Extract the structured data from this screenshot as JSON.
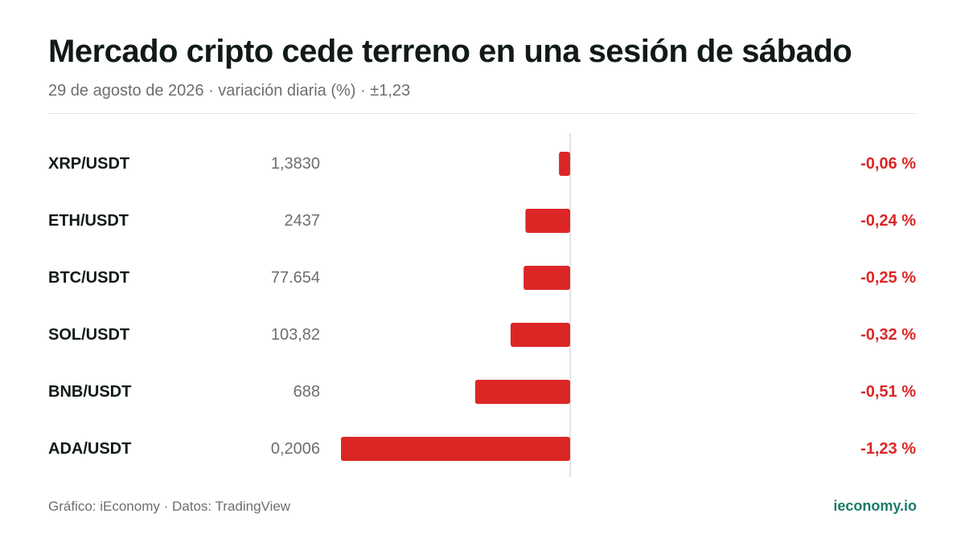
{
  "title": "Mercado cripto cede terreno en una sesión de sábado",
  "subtitle": "29 de agosto de 2026 · variación diaria (%) · ±1,23",
  "footer": {
    "source": "Gráfico: iEconomy · Datos: TradingView",
    "brand": "ieconomy.io"
  },
  "colors": {
    "negative": "#dc2626",
    "pair_label": "#111a17",
    "price_label": "#6b6f6d",
    "brand": "#1a7a6a",
    "axis": "#d9dbda"
  },
  "chart_data": {
    "type": "bar",
    "orientation": "horizontal",
    "unit": "%",
    "xlim": [
      -1.23,
      1.23
    ],
    "categories": [
      "XRP/USDT",
      "ETH/USDT",
      "BTC/USDT",
      "SOL/USDT",
      "BNB/USDT",
      "ADA/USDT"
    ],
    "prices": [
      "1,3830",
      "2437",
      "77.654",
      "103,82",
      "688",
      "0,2006"
    ],
    "values": [
      -0.06,
      -0.24,
      -0.25,
      -0.32,
      -0.51,
      -1.23
    ],
    "value_labels": [
      "-0,06 %",
      "-0,24 %",
      "-0,25 %",
      "-0,32 %",
      "-0,51 %",
      "-1,23 %"
    ]
  }
}
